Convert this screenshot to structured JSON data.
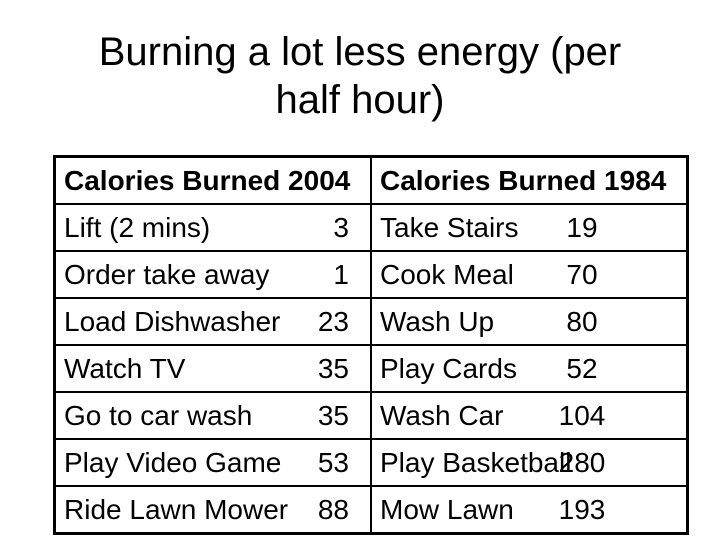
{
  "slide": {
    "title_lines": [
      "Burning a lot less energy (per",
      "half hour)"
    ],
    "colors": {
      "text": "#000000",
      "background": "#ffffff",
      "table_border": "#000000"
    },
    "table": {
      "headers": [
        "Calories Burned 2004",
        "Calories Burned 1984"
      ],
      "rows": [
        {
          "left": {
            "activity": "Lift (2 mins)",
            "calories": "3"
          },
          "right": {
            "activity": "Take Stairs",
            "calories": "19"
          }
        },
        {
          "left": {
            "activity": "Order take away",
            "calories": "1"
          },
          "right": {
            "activity": "Cook Meal",
            "calories": "70"
          }
        },
        {
          "left": {
            "activity": "Load Dishwasher",
            "calories": "23"
          },
          "right": {
            "activity": "Wash Up",
            "calories": "80"
          }
        },
        {
          "left": {
            "activity": "Watch TV",
            "calories": "35"
          },
          "right": {
            "activity": "Play Cards",
            "calories": "52"
          }
        },
        {
          "left": {
            "activity": "Go to car wash",
            "calories": "35"
          },
          "right": {
            "activity": "Wash Car",
            "calories": "104"
          }
        },
        {
          "left": {
            "activity": "Play Video Game",
            "calories": "53"
          },
          "right": {
            "activity": "Play Basketball",
            "calories": "280"
          }
        },
        {
          "left": {
            "activity": "Ride Lawn Mower",
            "calories": "88"
          },
          "right": {
            "activity": "Mow Lawn",
            "calories": "193"
          }
        }
      ]
    }
  }
}
